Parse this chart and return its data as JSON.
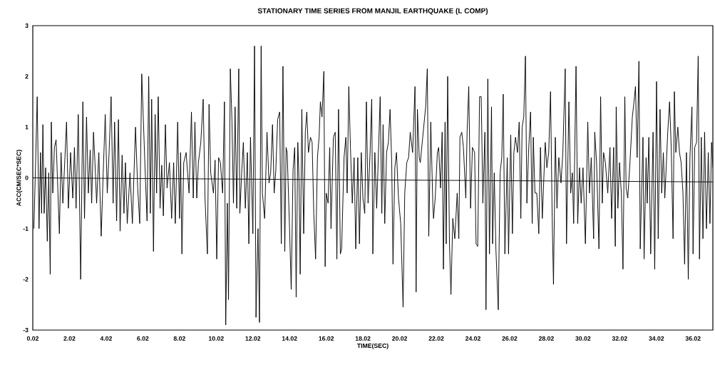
{
  "chart_data": {
    "type": "line",
    "title": "STATIONARY TIME SERIES FROM MANJIL EARTHQUAKE (L COMP)",
    "xlabel": "TIME(SEC)",
    "ylabel": "ACC(CM/SEC*SEC)",
    "xlim": [
      0.02,
      37.1
    ],
    "ylim": [
      -3,
      3
    ],
    "xticks": [
      0.02,
      2.02,
      4.02,
      6.02,
      8.02,
      10.02,
      12.02,
      14.02,
      16.02,
      18.02,
      20.02,
      22.02,
      24.02,
      26.02,
      28.02,
      30.02,
      32.02,
      34.02,
      36.02
    ],
    "yticks": [
      -3,
      -2,
      -1,
      0,
      1,
      2,
      3
    ],
    "series": [
      {
        "color": "#000000",
        "x": [
          0.08,
          0.18,
          0.26,
          0.36,
          0.44,
          0.5,
          0.57,
          0.64,
          0.72,
          0.81,
          0.89,
          0.97,
          1.03,
          1.11,
          1.2,
          1.29,
          1.47,
          1.56,
          1.66,
          1.86,
          1.96,
          2.08,
          2.2,
          2.29,
          2.38,
          2.5,
          2.63,
          2.75,
          2.84,
          2.95,
          3.05,
          3.15,
          3.23,
          3.33,
          3.41,
          3.5,
          3.62,
          3.75,
          3.86,
          3.97,
          4.08,
          4.18,
          4.29,
          4.4,
          4.48,
          4.59,
          4.69,
          4.78,
          4.89,
          4.99,
          5.07,
          5.17,
          5.32,
          5.45,
          5.62,
          5.74,
          5.85,
          5.96,
          6.15,
          6.25,
          6.34,
          6.43,
          6.5,
          6.6,
          6.69,
          6.77,
          6.86,
          6.96,
          7.05,
          7.14,
          7.25,
          7.34,
          7.47,
          7.59,
          7.7,
          7.79,
          7.92,
          8.02,
          8.08,
          8.15,
          8.25,
          8.38,
          8.54,
          8.67,
          8.77,
          8.86,
          8.96,
          9.05,
          9.18,
          9.31,
          9.41,
          9.54,
          9.63,
          9.72,
          9.87,
          9.96,
          10.05,
          10.15,
          10.25,
          10.37,
          10.47,
          10.54,
          10.63,
          10.69,
          10.79,
          10.88,
          10.96,
          11.05,
          11.14,
          11.25,
          11.31,
          11.41,
          11.5,
          11.61,
          11.72,
          11.8,
          11.89,
          12.02,
          12.11,
          12.19,
          12.3,
          12.38,
          12.47,
          12.54,
          12.66,
          12.79,
          12.9,
          12.99,
          13.09,
          13.18,
          13.27,
          13.37,
          13.48,
          13.57,
          13.66,
          13.76,
          13.83,
          13.89,
          14.02,
          14.11,
          14.21,
          14.3,
          14.38,
          14.47,
          14.54,
          14.6,
          14.69,
          14.79,
          14.88,
          14.96,
          15.05,
          15.16,
          15.25,
          15.34,
          15.44,
          15.54,
          15.63,
          15.7,
          15.79,
          15.89,
          15.96,
          16.02,
          16.12,
          16.21,
          16.28,
          16.41,
          16.51,
          16.6,
          16.69,
          16.79,
          16.86,
          16.99,
          17.09,
          17.16,
          17.25,
          17.34,
          17.44,
          17.54,
          17.63,
          17.74,
          17.83,
          17.93,
          18.02,
          18.12,
          18.21,
          18.3,
          18.41,
          18.5,
          18.56,
          18.67,
          18.77,
          18.86,
          18.96,
          19.05,
          19.12,
          19.21,
          19.31,
          19.41,
          19.5,
          19.59,
          19.66,
          19.76,
          19.85,
          19.96,
          20.08,
          20.21,
          20.3,
          20.41,
          20.51,
          20.6,
          20.73,
          20.86,
          20.92,
          20.99,
          21.09,
          21.15,
          21.28,
          21.44,
          21.53,
          21.61,
          21.72,
          21.83,
          21.87,
          21.96,
          22.08,
          22.15,
          22.25,
          22.34,
          22.41,
          22.5,
          22.56,
          22.64,
          22.74,
          22.82,
          22.92,
          23.03,
          23.16,
          23.25,
          23.31,
          23.41,
          23.5,
          23.63,
          23.7,
          23.79,
          23.89,
          23.99,
          24.11,
          24.19,
          24.28,
          24.38,
          24.47,
          24.56,
          24.67,
          24.73,
          24.83,
          24.92,
          25.03,
          25.09,
          25.18,
          25.27,
          25.4,
          25.5,
          25.59,
          25.67,
          25.76,
          25.89,
          25.96,
          26.08,
          26.17,
          26.25,
          26.34,
          26.45,
          26.54,
          26.63,
          26.7,
          26.79,
          26.88,
          26.96,
          27.05,
          27.16,
          27.25,
          27.31,
          27.4,
          27.5,
          27.61,
          27.7,
          27.8,
          27.96,
          28.05,
          28.15,
          28.25,
          28.34,
          28.41,
          28.51,
          28.6,
          28.7,
          28.82,
          28.92,
          29.05,
          29.12,
          29.25,
          29.35,
          29.44,
          29.51,
          29.64,
          29.73,
          29.83,
          29.92,
          30.02,
          30.15,
          30.28,
          30.37,
          30.47,
          30.6,
          30.66,
          30.76,
          30.89,
          30.98,
          31.07,
          31.14,
          31.24,
          31.37,
          31.49,
          31.58,
          31.69,
          31.78,
          31.83,
          31.92,
          32.01,
          32.11,
          32.2,
          32.3,
          32.37,
          32.46,
          32.58,
          32.71,
          32.8,
          32.88,
          32.97,
          33.07,
          33.14,
          33.2,
          33.29,
          33.35,
          33.46,
          33.52,
          33.61,
          33.71,
          33.84,
          33.93,
          34.03,
          34.12,
          34.22,
          34.31,
          34.4,
          34.48,
          34.64,
          34.74,
          34.83,
          34.93,
          35.0,
          35.08,
          35.19,
          35.28,
          35.37,
          35.47,
          35.56,
          35.66,
          35.76,
          35.85,
          35.96,
          36.02,
          36.11,
          36.21,
          36.3,
          36.37,
          36.47,
          36.56,
          36.65,
          36.75,
          36.85,
          36.94,
          37.03,
          37.1
        ],
        "values": [
          -1.0,
          0.4,
          1.6,
          -1.0,
          0.5,
          -0.7,
          1.05,
          -0.7,
          0.2,
          -1.25,
          0.1,
          -1.9,
          1.1,
          -0.3,
          0.6,
          0.75,
          -1.1,
          0.5,
          -0.5,
          1.1,
          -0.6,
          0.5,
          -0.4,
          0.6,
          -0.6,
          1.25,
          -2.0,
          1.5,
          -0.8,
          1.2,
          -0.3,
          0.55,
          -0.5,
          0.9,
          0.3,
          -0.5,
          0.5,
          -1.15,
          0.1,
          1.25,
          -0.3,
          0.5,
          1.6,
          -0.5,
          1.1,
          -0.85,
          1.15,
          -1.05,
          0.45,
          -0.7,
          0.3,
          -0.9,
          0.1,
          -0.9,
          1.0,
          -0.2,
          -0.9,
          2.05,
          0.1,
          -0.85,
          2.0,
          -0.7,
          1.55,
          -1.45,
          1.25,
          -0.3,
          1.6,
          -0.6,
          0.25,
          -0.75,
          1.05,
          -0.2,
          0.3,
          -0.8,
          0.3,
          -0.9,
          1.1,
          -0.8,
          0.5,
          -1.5,
          0.3,
          0.5,
          -0.3,
          1.3,
          -0.4,
          1.1,
          -0.4,
          0.3,
          0.7,
          1.55,
          -0.4,
          -1.5,
          1.45,
          0.1,
          -0.3,
          0.35,
          -1.6,
          0.4,
          0.3,
          -0.3,
          1.5,
          -2.9,
          -0.5,
          -2.4,
          2.15,
          1.1,
          -0.5,
          1.4,
          -0.6,
          2.15,
          -0.7,
          0.1,
          0.7,
          -0.6,
          0.5,
          -1.3,
          0.8,
          -1.1,
          2.6,
          -2.75,
          -1.0,
          -2.85,
          2.6,
          -0.3,
          -0.8,
          0.9,
          -0.1,
          0.1,
          1.05,
          -0.3,
          0.15,
          1.15,
          1.3,
          -1.3,
          2.2,
          -1.45,
          0.6,
          0.5,
          -1.0,
          -2.2,
          0.15,
          0.6,
          -2.35,
          0.7,
          -0.1,
          -1.9,
          1.35,
          -1.1,
          0.9,
          1.3,
          0.5,
          0.8,
          0.7,
          -0.7,
          -1.6,
          0.4,
          0.8,
          1.5,
          1.2,
          2.1,
          -1.75,
          -0.3,
          -0.5,
          0.6,
          -1.0,
          0.8,
          0.9,
          -1.6,
          1.35,
          -1.5,
          -1.4,
          0.4,
          0.8,
          -0.3,
          1.8,
          0.6,
          -0.5,
          0.4,
          -1.4,
          0.4,
          -1.3,
          0.5,
          -0.4,
          -0.7,
          1.5,
          -0.5,
          0.5,
          1.55,
          -1.5,
          0.5,
          -0.6,
          0.4,
          1.6,
          -0.7,
          1.05,
          -0.9,
          0.5,
          0.7,
          1.35,
          0.3,
          -1.7,
          0.2,
          0.5,
          -0.4,
          -0.9,
          -2.55,
          -0.3,
          0.3,
          0.4,
          0.9,
          0.5,
          1.8,
          -2.25,
          1.35,
          0.4,
          0.3,
          0.8,
          1.4,
          2.15,
          -1.15,
          1.1,
          -0.5,
          -0.8,
          -0.4,
          0.5,
          0.6,
          -0.2,
          0.9,
          -1.8,
          1.1,
          -1.3,
          2.0,
          -1.3,
          -2.3,
          -0.8,
          -1.2,
          -0.3,
          -1.2,
          0.8,
          0.9,
          0.6,
          -0.4,
          0.9,
          1.8,
          -0.6,
          0.6,
          0.5,
          -1.3,
          -1.35,
          1.6,
          1.6,
          -0.5,
          0.9,
          -2.6,
          1.95,
          -1.5,
          1.4,
          -1.3,
          0.1,
          -1.4,
          -2.6,
          0.1,
          0.4,
          1.65,
          -1.5,
          0.4,
          -1.5,
          0.85,
          -1.1,
          0.5,
          0.8,
          0.5,
          1.1,
          -0.8,
          1.0,
          1.2,
          2.4,
          -0.5,
          0.5,
          1.3,
          -0.9,
          0.8,
          -0.3,
          -0.3,
          -1.1,
          0.6,
          -0.8,
          0.7,
          0.2,
          0.5,
          1.7,
          -0.8,
          -2.1,
          0.8,
          -0.6,
          0.4,
          -0.1,
          0.5,
          2.15,
          -1.3,
          1.5,
          -0.3,
          0.1,
          -0.9,
          2.2,
          -0.9,
          0.2,
          -0.5,
          0.2,
          -1.3,
          1.1,
          -0.3,
          0.4,
          -1.2,
          0.9,
          0.3,
          -1.4,
          1.6,
          -0.5,
          0.5,
          0.3,
          -0.3,
          0.6,
          -0.8,
          0.6,
          -1.35,
          1.4,
          -0.6,
          0.3,
          -0.3,
          -1.8,
          1.6,
          -0.2,
          -0.4,
          0.3,
          1.2,
          1.5,
          1.8,
          0.4,
          2.3,
          -1.4,
          -0.5,
          0.8,
          -1.6,
          0.4,
          -0.5,
          0.8,
          -1.5,
          0.9,
          -1.8,
          1.9,
          -1.2,
          1.35,
          -0.3,
          0.5,
          -0.4,
          0.9,
          1.5,
          0.6,
          -1.2,
          1.7,
          0.5,
          1.0,
          0.5,
          0.3,
          -0.3,
          -1.7,
          0.5,
          -2.0,
          0.4,
          1.4,
          -1.5,
          0.6,
          0.7,
          2.4,
          -1.6,
          0.8,
          -1.2,
          0.9,
          -1.0,
          0.5,
          -0.9,
          0.7,
          0.2
        ]
      },
      {
        "color": "#000000",
        "x": [
          0.02,
          37.1
        ],
        "values": [
          0,
          -0.08
        ]
      }
    ]
  }
}
